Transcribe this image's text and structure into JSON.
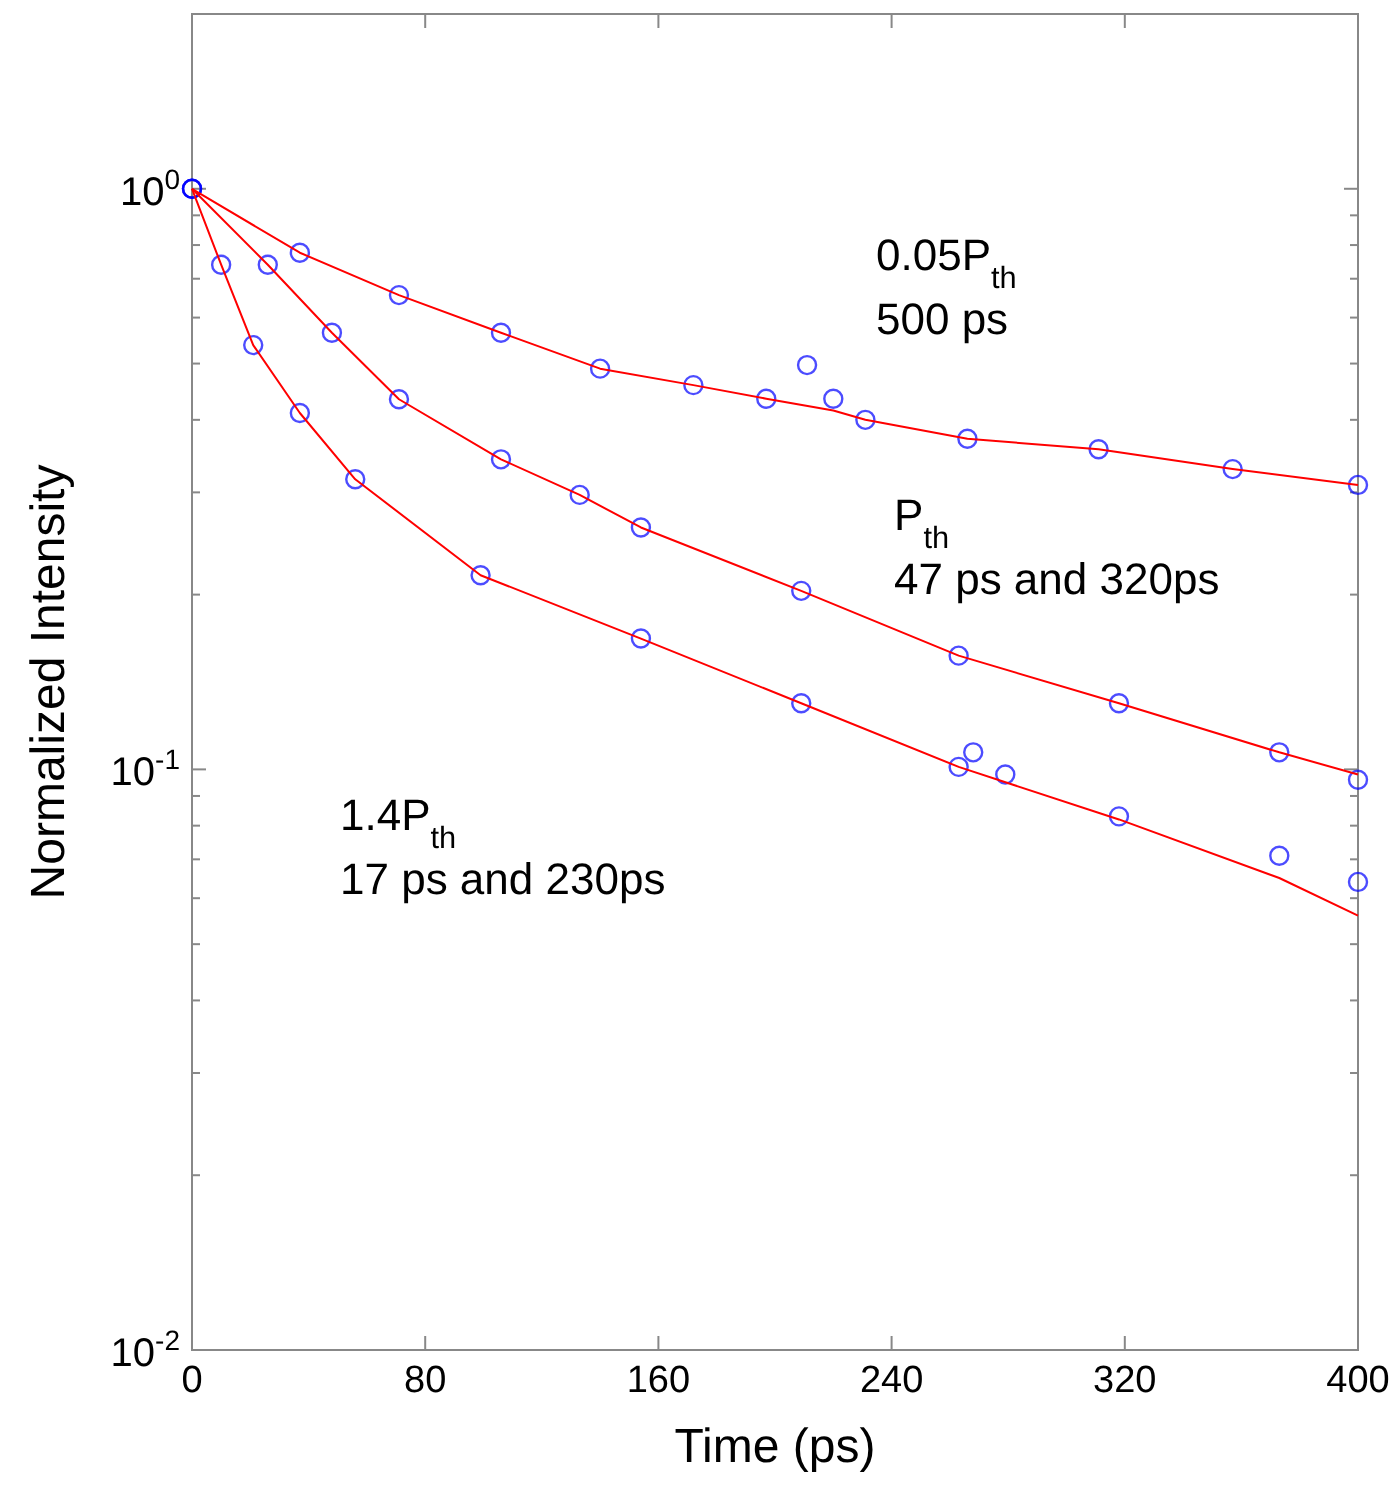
{
  "chart_data": {
    "type": "scatter",
    "xlabel": "Time (ps)",
    "ylabel": "Normalized Intensity",
    "log": "y",
    "grid": false,
    "xlim": [
      0,
      400
    ],
    "xticks": [
      0,
      80,
      160,
      240,
      320,
      400
    ],
    "ylim": [
      0.01,
      2
    ],
    "yticks": [
      {
        "value": 0.01,
        "label": "10$^{-2}$"
      },
      {
        "value": 0.02,
        "label": null
      },
      {
        "value": 0.03,
        "label": null
      },
      {
        "value": 0.04,
        "label": null
      },
      {
        "value": 0.05,
        "label": null
      },
      {
        "value": 0.06,
        "label": null
      },
      {
        "value": 0.07,
        "label": null
      },
      {
        "value": 0.08,
        "label": null
      },
      {
        "value": 0.09,
        "label": null
      },
      {
        "value": 0.1,
        "label": "10$^{-1}$"
      },
      {
        "value": 0.2,
        "label": null
      },
      {
        "value": 0.3,
        "label": null
      },
      {
        "value": 0.4,
        "label": null
      },
      {
        "value": 0.5,
        "label": null
      },
      {
        "value": 0.6,
        "label": null
      },
      {
        "value": 0.7,
        "label": null
      },
      {
        "value": 0.8,
        "label": null
      },
      {
        "value": 0.9,
        "label": null
      },
      {
        "value": 1,
        "label": "10$^{0}$"
      }
    ],
    "series": [
      {
        "marker": "circle",
        "color": "#0000ff",
        "x": [
          0,
          37,
          71,
          106,
          140,
          172,
          197,
          211,
          220,
          231,
          266,
          311,
          357,
          400
        ],
        "values": [
          1,
          0.776,
          0.656,
          0.565,
          0.49,
          0.459,
          0.435,
          0.497,
          0.435,
          0.4,
          0.371,
          0.356,
          0.329,
          0.309
        ]
      },
      {
        "marker": "circle",
        "color": "#0000ff",
        "x": [
          0,
          26,
          48,
          71,
          106,
          133,
          154,
          209,
          263,
          318,
          373,
          400
        ],
        "values": [
          1,
          0.74,
          0.565,
          0.434,
          0.342,
          0.297,
          0.261,
          0.203,
          0.157,
          0.13,
          0.107,
          0.096
        ]
      },
      {
        "marker": "circle",
        "color": "#0000ff",
        "x": [
          0,
          10,
          21,
          37,
          56,
          99,
          154,
          209,
          263,
          268,
          279,
          318,
          373,
          400
        ],
        "values": [
          1,
          0.74,
          0.538,
          0.411,
          0.316,
          0.216,
          0.168,
          0.13,
          0.101,
          0.107,
          0.098,
          0.083,
          0.071,
          0.064
        ]
      },
      {
        "type": "line",
        "marker": "none",
        "color": "#ff0000",
        "x": [
          0,
          37,
          71,
          106,
          140,
          172,
          197,
          220,
          231,
          266,
          311,
          357,
          400
        ],
        "values": [
          1,
          0.776,
          0.656,
          0.565,
          0.49,
          0.459,
          0.435,
          0.415,
          0.4,
          0.371,
          0.356,
          0.329,
          0.309
        ]
      },
      {
        "type": "line",
        "marker": "none",
        "color": "#ff0000",
        "x": [
          0,
          26,
          48,
          71,
          106,
          133,
          154,
          209,
          263,
          318,
          373,
          400
        ],
        "values": [
          1,
          0.74,
          0.565,
          0.434,
          0.342,
          0.297,
          0.261,
          0.203,
          0.157,
          0.13,
          0.107,
          0.098
        ]
      },
      {
        "type": "line",
        "marker": "none",
        "color": "#ff0000",
        "x": [
          0,
          10,
          21,
          37,
          56,
          99,
          154,
          209,
          263,
          318,
          373,
          400
        ],
        "values": [
          1,
          0.74,
          0.538,
          0.411,
          0.316,
          0.216,
          0.168,
          0.13,
          0.101,
          0.082,
          0.065,
          0.056
        ]
      }
    ],
    "annotations": [
      "0.05P$_{th}$\n500 ps",
      "P$_{th}$\n47 ps and 320ps",
      "1.4P$_{th}$\n17 ps and 230ps"
    ]
  }
}
